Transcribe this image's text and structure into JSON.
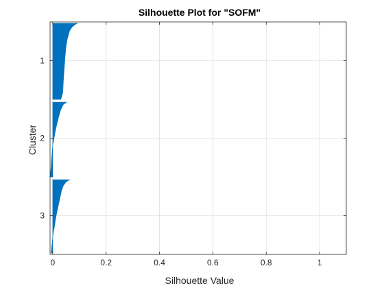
{
  "chart_data": {
    "type": "bar",
    "orientation": "horizontal",
    "title": "Silhouette Plot for \"SOFM\"",
    "xlabel": "Silhouette Value",
    "ylabel": "Cluster",
    "xlim": [
      -0.01,
      1.1
    ],
    "x_ticks": [
      0,
      0.2,
      0.4,
      0.6,
      0.8,
      1
    ],
    "x_tick_labels": [
      "0",
      "0.2",
      "0.4",
      "0.6",
      "0.8",
      "1"
    ],
    "grid": true,
    "bar_color": "#0072BD",
    "clusters": [
      {
        "label": "1",
        "profile": [
          [
            0.0,
            0.093
          ],
          [
            0.02,
            0.082
          ],
          [
            0.05,
            0.072
          ],
          [
            0.1,
            0.063
          ],
          [
            0.2,
            0.055
          ],
          [
            0.3,
            0.05
          ],
          [
            0.45,
            0.046
          ],
          [
            0.6,
            0.043
          ],
          [
            0.75,
            0.04
          ],
          [
            0.9,
            0.038
          ],
          [
            0.96,
            0.034
          ],
          [
            1.0,
            0.03
          ]
        ]
      },
      {
        "label": "2",
        "profile": [
          [
            0.0,
            0.052
          ],
          [
            0.03,
            0.04
          ],
          [
            0.1,
            0.03
          ],
          [
            0.2,
            0.022
          ],
          [
            0.3,
            0.015
          ],
          [
            0.4,
            0.009
          ],
          [
            0.5,
            0.004
          ],
          [
            0.58,
            0.0
          ],
          [
            0.66,
            -0.002
          ],
          [
            0.76,
            -0.004
          ],
          [
            0.86,
            -0.006
          ],
          [
            0.93,
            -0.008
          ],
          [
            1.0,
            -0.01
          ]
        ]
      },
      {
        "label": "3",
        "profile": [
          [
            0.0,
            0.063
          ],
          [
            0.03,
            0.05
          ],
          [
            0.08,
            0.04
          ],
          [
            0.15,
            0.033
          ],
          [
            0.25,
            0.027
          ],
          [
            0.35,
            0.021
          ],
          [
            0.45,
            0.015
          ],
          [
            0.55,
            0.01
          ],
          [
            0.65,
            0.006
          ],
          [
            0.72,
            0.002
          ],
          [
            0.78,
            0.0
          ],
          [
            0.86,
            -0.002
          ],
          [
            0.93,
            -0.004
          ],
          [
            1.0,
            -0.006
          ]
        ]
      }
    ]
  }
}
